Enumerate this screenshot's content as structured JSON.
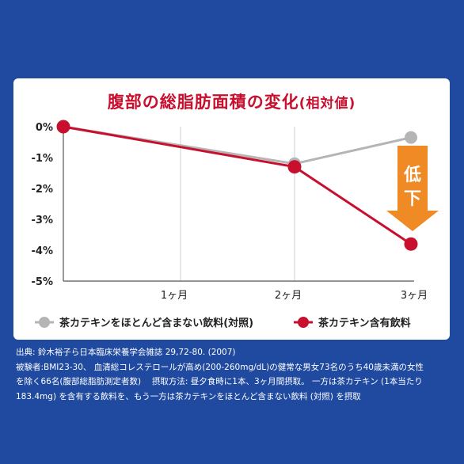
{
  "chart_data": {
    "type": "line",
    "title": "腹部の総脂肪面積の変化",
    "title_suffix": "(相対値)",
    "x": [
      "",
      "1ヶ月",
      "2ヶ月",
      "3ヶ月"
    ],
    "y_ticks": [
      "0%",
      "-1%",
      "-2%",
      "-3%",
      "-4%",
      "-5%"
    ],
    "ylim": [
      -5,
      0
    ],
    "series": [
      {
        "name": "茶カテキンをほとんど含まない飲料(対照)",
        "color": "#b5b5b5",
        "values": [
          0,
          null,
          -1.2,
          -0.35
        ]
      },
      {
        "name": "茶カテキン含有飲料",
        "color": "#c8102e",
        "values": [
          0,
          null,
          -1.3,
          -3.8
        ]
      }
    ],
    "annotation": {
      "chars": [
        "低",
        "下"
      ],
      "color": "#f08a24"
    },
    "legend_position": "bottom",
    "grid": "vertical"
  },
  "footnotes": [
    "出典: 鈴木裕子ら日本臨床栄養学会雑誌 29,72-80. (2007)",
    "被験者:BMI23-30、 血清総コレステロールが高め(200-260mg/dL)の健常な男女73名のうち40歳未満の女性",
    "を除く66名(腹部総脂肪測定者数)　 摂取方法: 昼夕食時に1本、3ヶ月間摂取。 一方は茶カテキン (1本当たり",
    "183.4mg) を含有する飲料を、もう一方は茶カテキンをほとんど含まない飲料 (対照) を摂取"
  ]
}
